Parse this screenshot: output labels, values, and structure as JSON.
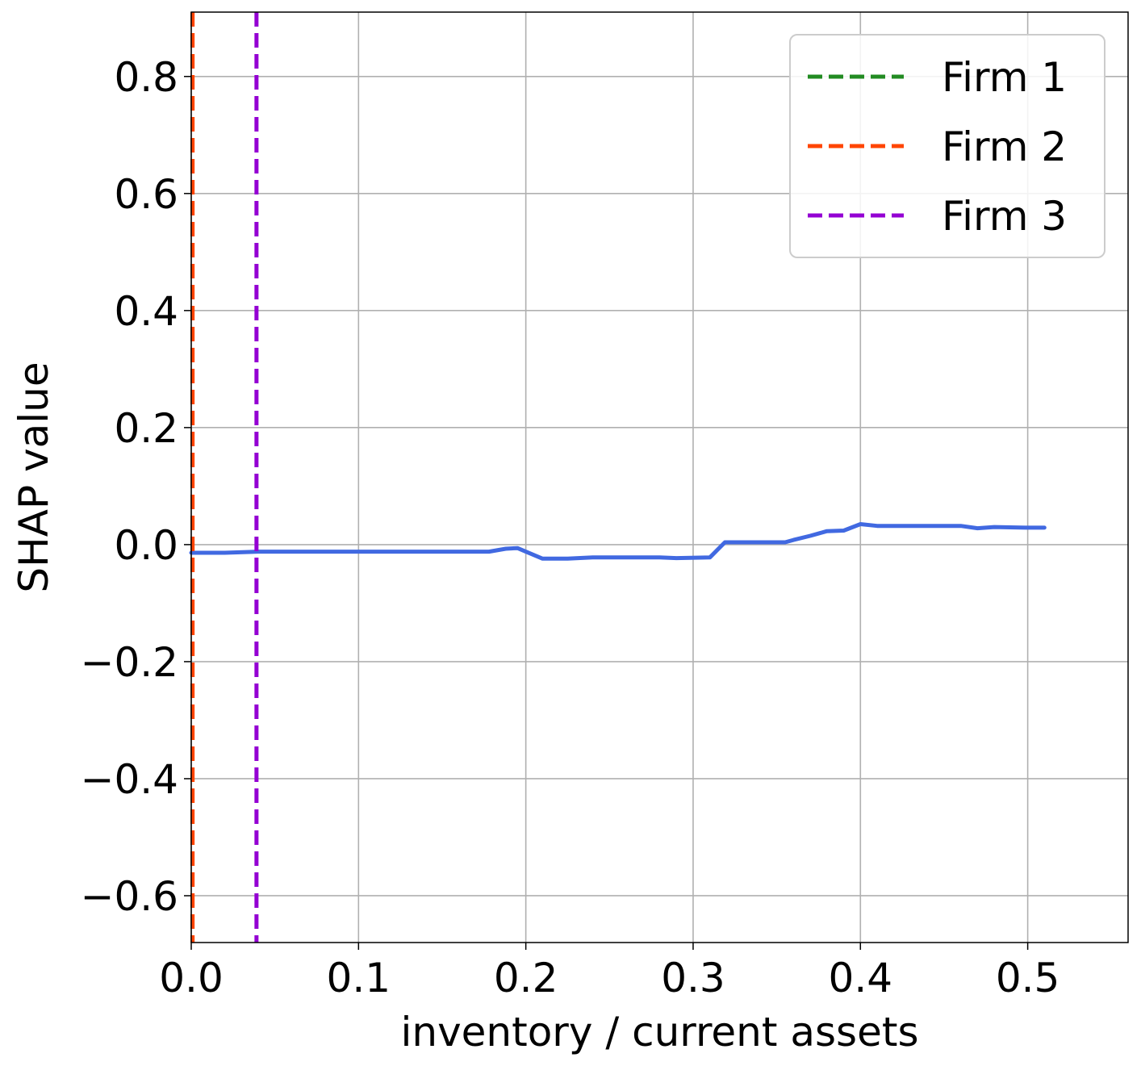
{
  "chart_data": {
    "type": "line",
    "xlabel": "inventory / current assets",
    "ylabel": "SHAP value",
    "xlim": [
      0.0,
      0.56
    ],
    "ylim": [
      -0.68,
      0.91
    ],
    "xticks": [
      0.0,
      0.1,
      0.2,
      0.3,
      0.4,
      0.5
    ],
    "xtick_labels": [
      "0.0",
      "0.1",
      "0.2",
      "0.3",
      "0.4",
      "0.5"
    ],
    "yticks": [
      -0.6,
      -0.4,
      -0.2,
      0.0,
      0.2,
      0.4,
      0.6,
      0.8
    ],
    "ytick_labels": [
      "−0.6",
      "−0.4",
      "−0.2",
      "0.0",
      "0.2",
      "0.4",
      "0.6",
      "0.8"
    ],
    "grid": true,
    "legend_position": "top-right",
    "series": [
      {
        "color": "#4169e1",
        "x": [
          0.0,
          0.02,
          0.04,
          0.08,
          0.12,
          0.15,
          0.178,
          0.188,
          0.195,
          0.2,
          0.21,
          0.225,
          0.24,
          0.26,
          0.28,
          0.29,
          0.31,
          0.319,
          0.33,
          0.345,
          0.355,
          0.36,
          0.37,
          0.38,
          0.39,
          0.4,
          0.41,
          0.43,
          0.46,
          0.47,
          0.48,
          0.5,
          0.51
        ],
        "y": [
          -0.014,
          -0.014,
          -0.012,
          -0.012,
          -0.012,
          -0.012,
          -0.012,
          -0.007,
          -0.006,
          -0.012,
          -0.024,
          -0.024,
          -0.022,
          -0.022,
          -0.022,
          -0.023,
          -0.022,
          0.004,
          0.004,
          0.004,
          0.004,
          0.008,
          0.015,
          0.023,
          0.024,
          0.035,
          0.032,
          0.032,
          0.032,
          0.028,
          0.03,
          0.029,
          0.029
        ]
      }
    ],
    "vlines": [
      {
        "name": "Firm 1",
        "x": 0.0,
        "color": "#228b22"
      },
      {
        "name": "Firm 2",
        "x": 0.0008,
        "color": "#ff4500"
      },
      {
        "name": "Firm 3",
        "x": 0.039,
        "color": "#9400d3"
      }
    ]
  }
}
